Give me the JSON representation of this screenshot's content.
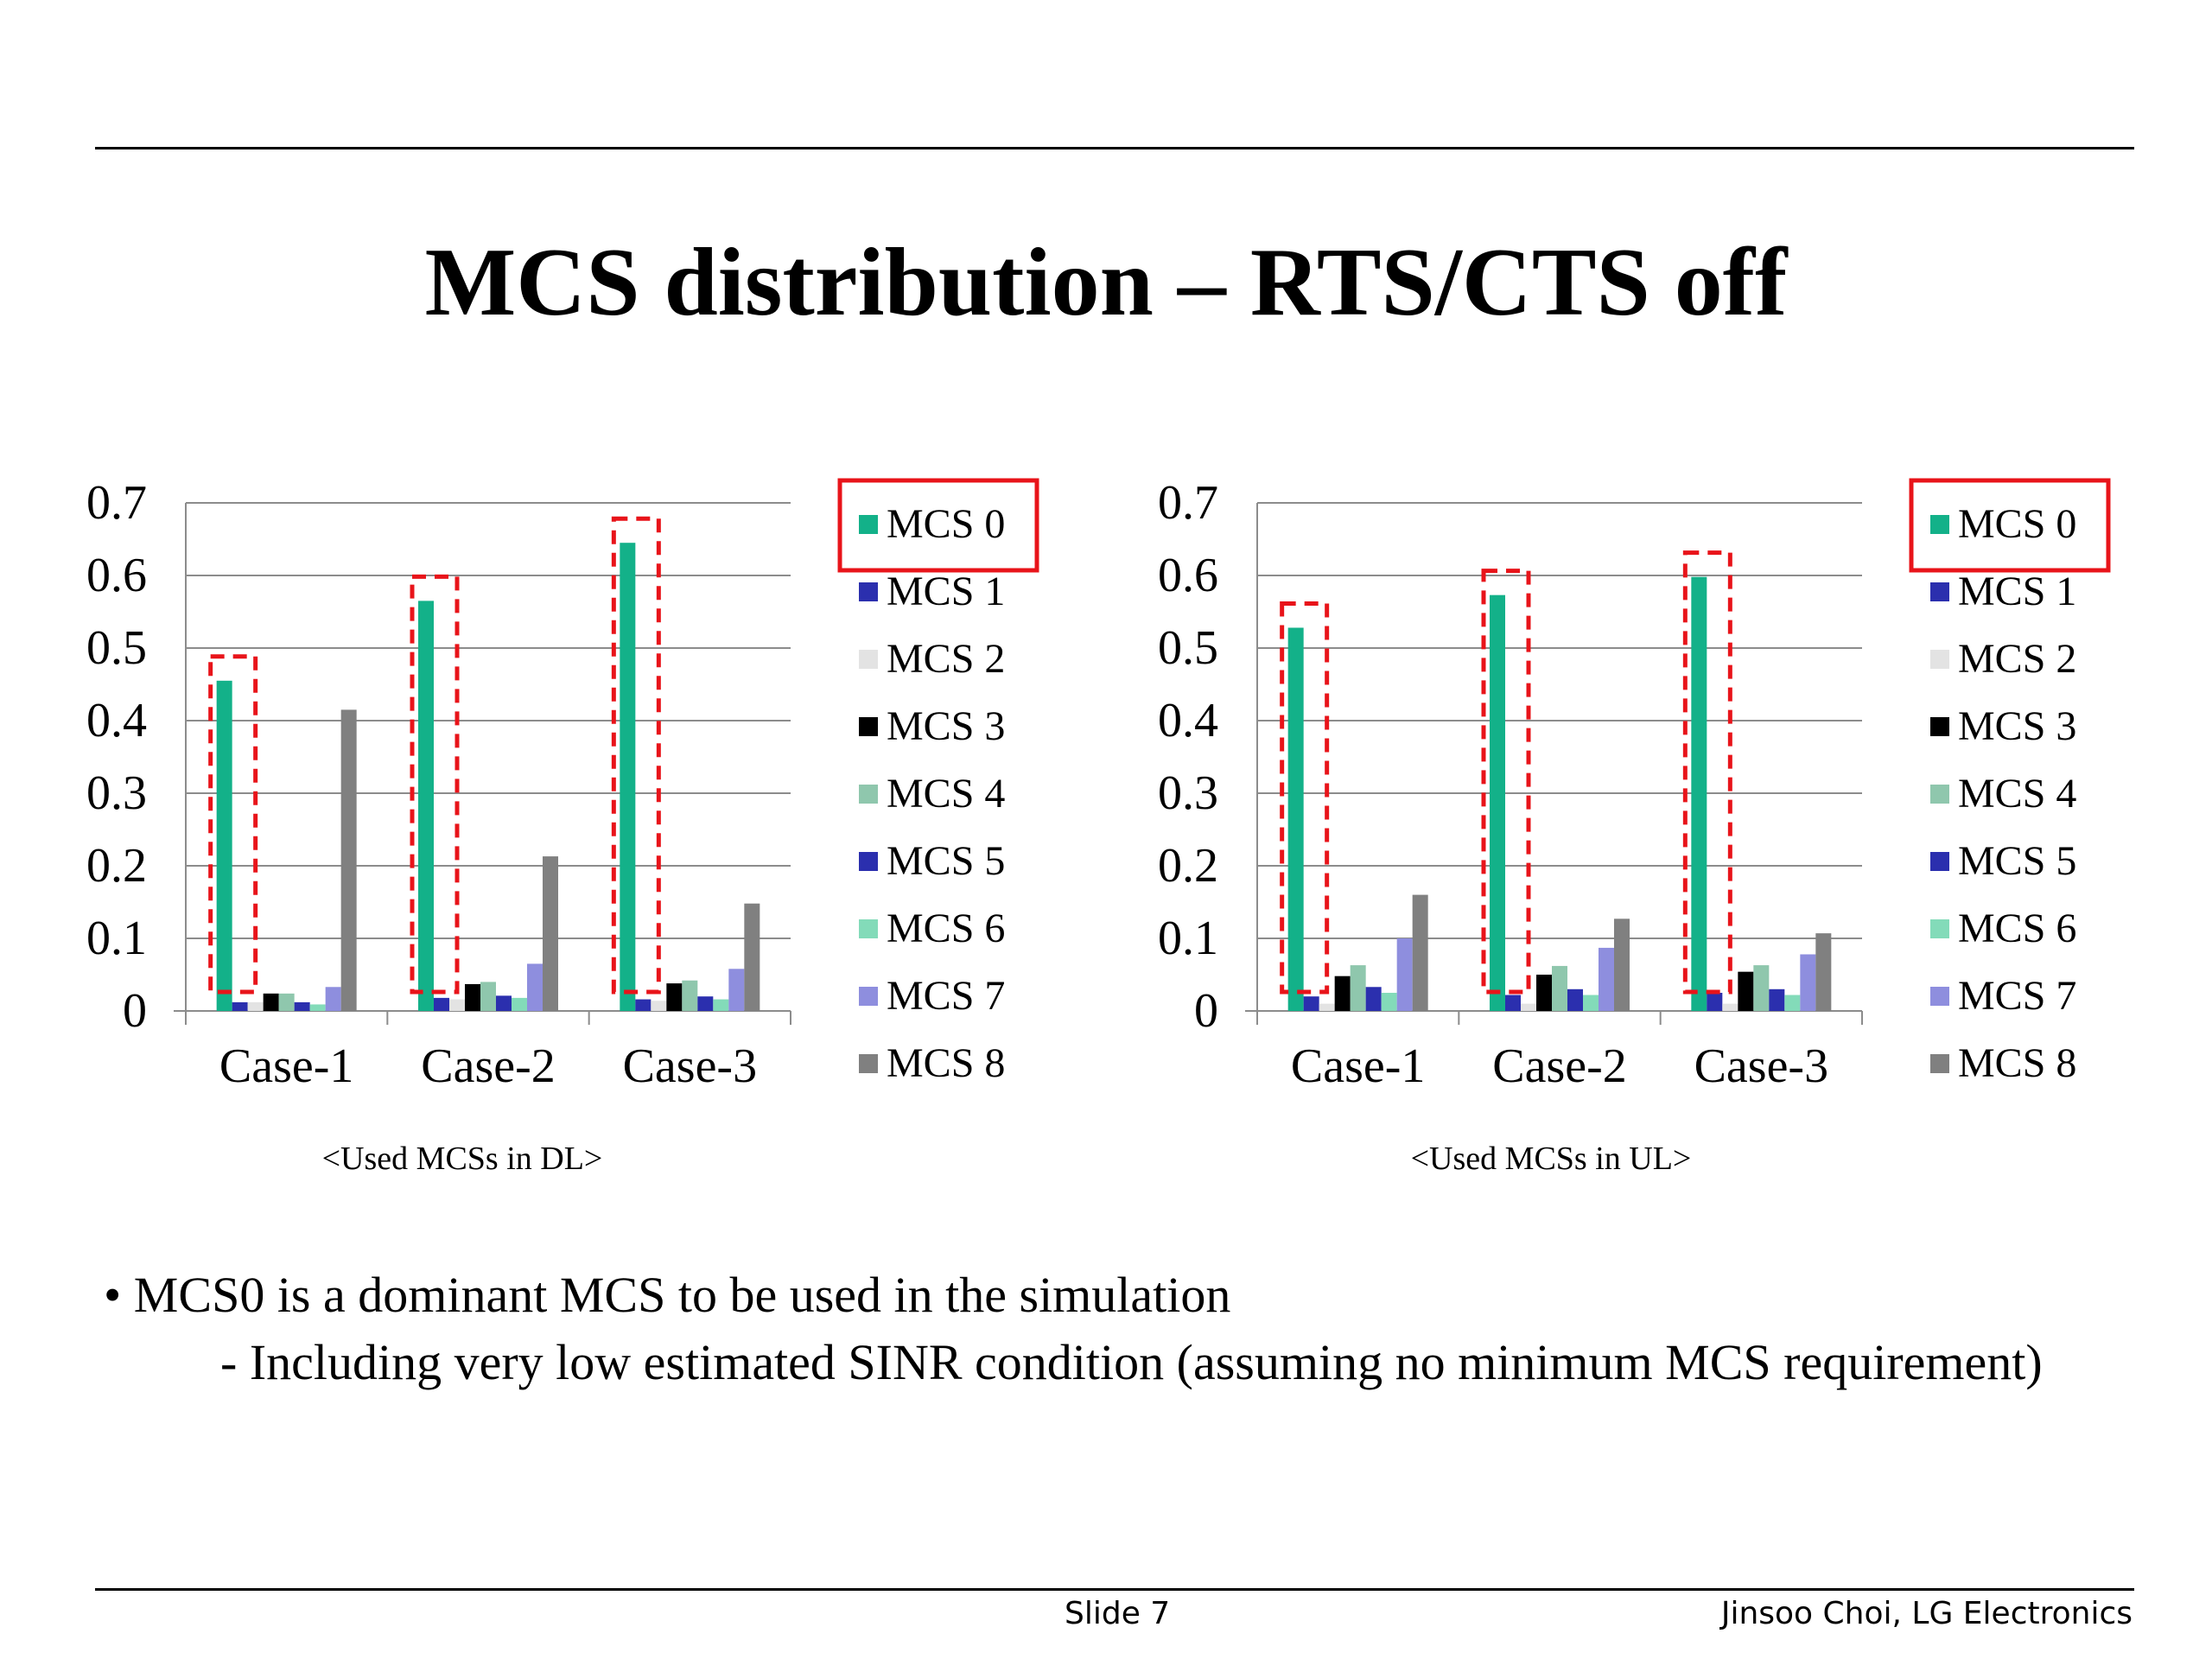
{
  "slide": {
    "title": "MCS distribution – RTS/CTS off",
    "bullet_main": "• MCS0 is a dominant MCS to be used in the simulation",
    "bullet_sub": "- Including very low estimated SINR condition (assuming no minimum MCS requirement)",
    "footer_slide": "Slide 7",
    "footer_author": "Jinsoo Choi, LG Electronics"
  },
  "chart_data": [
    {
      "type": "bar",
      "caption": "<Used MCSs in DL>",
      "categories": [
        "Case-1",
        "Case-2",
        "Case-3"
      ],
      "ylim": [
        0,
        0.7
      ],
      "yticks": [
        "0",
        "0.1",
        "0.2",
        "0.3",
        "0.4",
        "0.5",
        "0.6",
        "0.7"
      ],
      "grid": true,
      "legend_position": "right",
      "highlighted_series": "MCS 0",
      "series": [
        {
          "name": "MCS 0",
          "color": "#13b189",
          "values": [
            0.455,
            0.565,
            0.645
          ]
        },
        {
          "name": "MCS 1",
          "color": "#2b2fae",
          "values": [
            0.012,
            0.018,
            0.016
          ]
        },
        {
          "name": "MCS 2",
          "color": "#e3e3e3",
          "values": [
            0.012,
            0.016,
            0.014
          ]
        },
        {
          "name": "MCS 3",
          "color": "#000000",
          "values": [
            0.024,
            0.037,
            0.038
          ]
        },
        {
          "name": "MCS 4",
          "color": "#8fc7ad",
          "values": [
            0.024,
            0.04,
            0.042
          ]
        },
        {
          "name": "MCS 5",
          "color": "#2b2fae",
          "values": [
            0.012,
            0.021,
            0.02
          ]
        },
        {
          "name": "MCS 6",
          "color": "#83dbb9",
          "values": [
            0.009,
            0.018,
            0.016
          ]
        },
        {
          "name": "MCS 7",
          "color": "#8e8ede",
          "values": [
            0.033,
            0.065,
            0.058
          ]
        },
        {
          "name": "MCS 8",
          "color": "#808080",
          "values": [
            0.415,
            0.213,
            0.148
          ]
        }
      ]
    },
    {
      "type": "bar",
      "caption": "<Used MCSs in UL>",
      "categories": [
        "Case-1",
        "Case-2",
        "Case-3"
      ],
      "ylim": [
        0,
        0.7
      ],
      "yticks": [
        "0",
        "0.1",
        "0.2",
        "0.3",
        "0.4",
        "0.5",
        "0.6",
        "0.7"
      ],
      "grid": true,
      "legend_position": "right",
      "highlighted_series": "MCS 0",
      "series": [
        {
          "name": "MCS 0",
          "color": "#13b189",
          "values": [
            0.528,
            0.573,
            0.598
          ]
        },
        {
          "name": "MCS 1",
          "color": "#2b2fae",
          "values": [
            0.02,
            0.022,
            0.025
          ]
        },
        {
          "name": "MCS 2",
          "color": "#e3e3e3",
          "values": [
            0.01,
            0.01,
            0.01
          ]
        },
        {
          "name": "MCS 3",
          "color": "#000000",
          "values": [
            0.048,
            0.05,
            0.054
          ]
        },
        {
          "name": "MCS 4",
          "color": "#8fc7ad",
          "values": [
            0.063,
            0.062,
            0.063
          ]
        },
        {
          "name": "MCS 5",
          "color": "#2b2fae",
          "values": [
            0.033,
            0.03,
            0.03
          ]
        },
        {
          "name": "MCS 6",
          "color": "#83dbb9",
          "values": [
            0.025,
            0.022,
            0.022
          ]
        },
        {
          "name": "MCS 7",
          "color": "#8e8ede",
          "values": [
            0.1,
            0.087,
            0.078
          ]
        },
        {
          "name": "MCS 8",
          "color": "#808080",
          "values": [
            0.16,
            0.127,
            0.107
          ]
        }
      ]
    }
  ]
}
